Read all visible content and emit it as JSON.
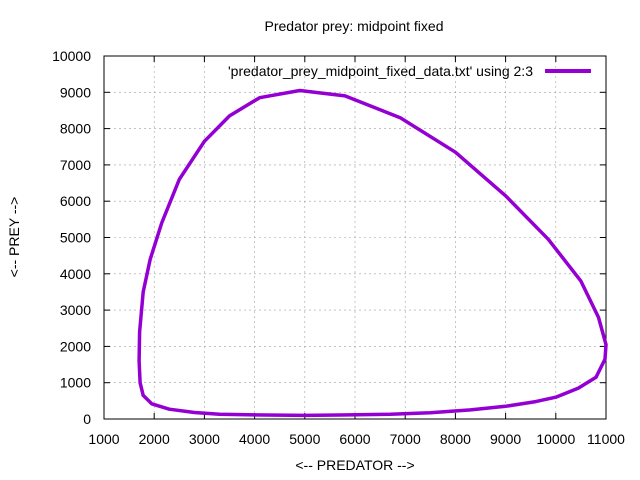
{
  "chart_data": {
    "type": "line",
    "title": "Predator prey: midpoint fixed",
    "xlabel": "<-- PREDATOR -->",
    "ylabel": "<-- PREY -->",
    "xlim": [
      1000,
      11000
    ],
    "ylim": [
      0,
      10000
    ],
    "xticks": [
      1000,
      2000,
      3000,
      4000,
      5000,
      6000,
      7000,
      8000,
      9000,
      10000,
      11000
    ],
    "yticks": [
      0,
      1000,
      2000,
      3000,
      4000,
      5000,
      6000,
      7000,
      8000,
      9000,
      10000
    ],
    "grid": true,
    "legend": "top-right",
    "series": [
      {
        "name": "'predator_prey_midpoint_fixed_data.txt' using 2:3",
        "color": "#9400d3",
        "x": [
          4900,
          5800,
          6900,
          8000,
          9000,
          9850,
          10500,
          10850,
          11000,
          10980,
          10800,
          10450,
          10000,
          9600,
          9000,
          8300,
          7500,
          6700,
          5700,
          5000,
          4200,
          3300,
          2800,
          2300,
          1950,
          1780,
          1720,
          1700,
          1710,
          1780,
          1920,
          2150,
          2500,
          3000,
          3500,
          4100,
          4900
        ],
        "y": [
          9050,
          8900,
          8300,
          7350,
          6150,
          4950,
          3800,
          2800,
          2050,
          1650,
          1150,
          850,
          600,
          480,
          350,
          250,
          170,
          130,
          110,
          100,
          110,
          130,
          180,
          270,
          420,
          650,
          1000,
          1600,
          2400,
          3500,
          4400,
          5400,
          6600,
          7650,
          8350,
          8850,
          9050
        ]
      }
    ]
  }
}
